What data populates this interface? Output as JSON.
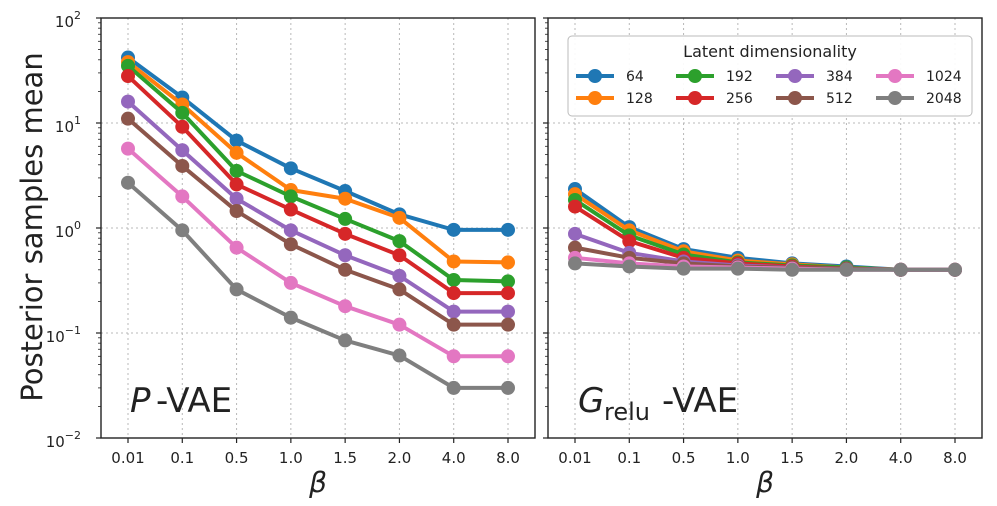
{
  "colors": {
    "64": "#1f77b4",
    "128": "#ff7f0e",
    "192": "#2ca02c",
    "256": "#d62728",
    "384": "#9467bd",
    "512": "#8c564b",
    "1024": "#e377c2",
    "2048": "#7f7f7f"
  },
  "ylabel": "Posterior samples mean",
  "ytick_base": "10",
  "ytick_exponents": [
    "2",
    "1",
    "0",
    "−1",
    "−2"
  ],
  "legend": {
    "title": "Latent dimensionality",
    "entries": [
      "64",
      "192",
      "384",
      "1024",
      "128",
      "256",
      "512",
      "2048"
    ]
  },
  "chart_data": [
    {
      "type": "line",
      "panel_label": "-VAE",
      "panel_symbol": "P",
      "xlabel": "β",
      "categories": [
        "0.01",
        "0.1",
        "0.5",
        "1.0",
        "1.5",
        "2.0",
        "4.0",
        "8.0"
      ],
      "yscale": "log",
      "ylim": [
        0.01,
        100
      ],
      "grid": true,
      "series": [
        {
          "name": "64",
          "values": [
            42,
            17.5,
            6.8,
            3.7,
            2.25,
            1.35,
            0.96,
            0.96
          ]
        },
        {
          "name": "128",
          "values": [
            38,
            15,
            5.2,
            2.3,
            1.9,
            1.25,
            0.48,
            0.47
          ]
        },
        {
          "name": "192",
          "values": [
            35,
            12.5,
            3.5,
            2.0,
            1.22,
            0.75,
            0.32,
            0.31
          ]
        },
        {
          "name": "256",
          "values": [
            28,
            9.2,
            2.6,
            1.5,
            0.88,
            0.55,
            0.24,
            0.24
          ]
        },
        {
          "name": "384",
          "values": [
            16,
            5.5,
            1.9,
            0.95,
            0.55,
            0.35,
            0.16,
            0.16
          ]
        },
        {
          "name": "512",
          "values": [
            11,
            3.9,
            1.45,
            0.7,
            0.4,
            0.26,
            0.12,
            0.12
          ]
        },
        {
          "name": "1024",
          "values": [
            5.7,
            2.0,
            0.65,
            0.3,
            0.18,
            0.12,
            0.06,
            0.06
          ]
        },
        {
          "name": "2048",
          "values": [
            2.7,
            0.95,
            0.26,
            0.14,
            0.085,
            0.061,
            0.03,
            0.03
          ]
        }
      ]
    },
    {
      "type": "line",
      "panel_label": "-VAE",
      "panel_symbol": "G",
      "panel_subscript": "relu",
      "xlabel": "β",
      "categories": [
        "0.01",
        "0.1",
        "0.5",
        "1.0",
        "1.5",
        "2.0",
        "4.0",
        "8.0"
      ],
      "yscale": "log",
      "ylim": [
        0.01,
        100
      ],
      "grid": true,
      "series": [
        {
          "name": "64",
          "values": [
            2.35,
            1.02,
            0.63,
            0.52,
            0.46,
            0.43,
            0.4,
            0.4
          ]
        },
        {
          "name": "128",
          "values": [
            2.1,
            0.95,
            0.6,
            0.49,
            0.45,
            0.42,
            0.4,
            0.4
          ]
        },
        {
          "name": "192",
          "values": [
            1.85,
            0.85,
            0.56,
            0.47,
            0.44,
            0.42,
            0.4,
            0.4
          ]
        },
        {
          "name": "256",
          "values": [
            1.6,
            0.75,
            0.52,
            0.46,
            0.43,
            0.41,
            0.4,
            0.4
          ]
        },
        {
          "name": "384",
          "values": [
            0.88,
            0.58,
            0.48,
            0.44,
            0.42,
            0.41,
            0.4,
            0.4
          ]
        },
        {
          "name": "512",
          "values": [
            0.65,
            0.52,
            0.46,
            0.43,
            0.42,
            0.41,
            0.4,
            0.4
          ]
        },
        {
          "name": "1024",
          "values": [
            0.52,
            0.46,
            0.43,
            0.42,
            0.41,
            0.4,
            0.4,
            0.4
          ]
        },
        {
          "name": "2048",
          "values": [
            0.46,
            0.43,
            0.41,
            0.41,
            0.4,
            0.4,
            0.4,
            0.4
          ]
        }
      ]
    }
  ]
}
